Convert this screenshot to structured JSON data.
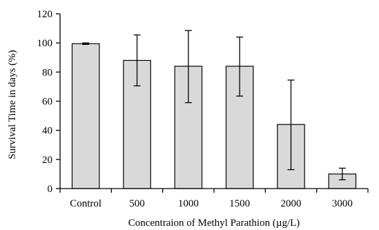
{
  "chart_data": {
    "type": "bar",
    "title": "",
    "xlabel": "Concentraion of Methyl Parathion (µg/L)",
    "ylabel": "Survival Time in days (%)",
    "categories": [
      "Control",
      "500",
      "1000",
      "1500",
      "2000",
      "3000"
    ],
    "values": [
      99.5,
      88,
      84,
      84,
      44,
      10
    ],
    "error_low": [
      99,
      70.5,
      59,
      63.5,
      13,
      6
    ],
    "error_high": [
      100,
      105.5,
      108.5,
      104,
      74.5,
      14
    ],
    "ylim": [
      0,
      120
    ],
    "yticks": [
      0,
      20,
      40,
      60,
      80,
      100,
      120
    ],
    "grid": false,
    "colors": {
      "bar_fill": "#d9d9d9",
      "bar_stroke": "#000000"
    }
  }
}
